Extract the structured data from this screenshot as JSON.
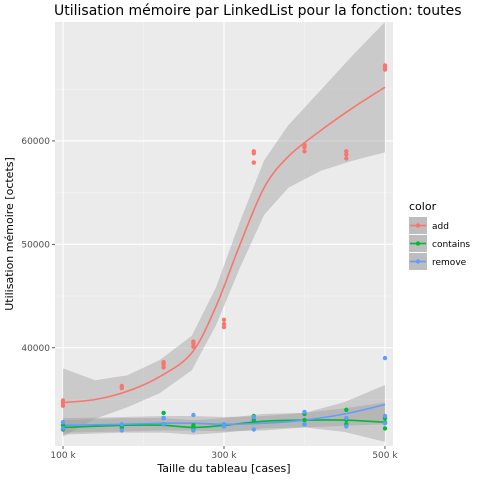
{
  "chart_data": {
    "type": "scatter",
    "title": "Utilisation mémoire par LinkedList pour la fonction: toutes",
    "xlabel": "Taille du tableau [cases]",
    "ylabel": "Utilisation mémoire [octets]",
    "xlim": [
      90000,
      510000
    ],
    "ylim": [
      30500,
      71500
    ],
    "x_ticks": [
      100000,
      300000,
      500000
    ],
    "x_tick_labels": [
      "100 k",
      "300 k",
      "500 k"
    ],
    "y_ticks": [
      40000,
      50000,
      60000
    ],
    "y_tick_labels": [
      "40000",
      "50000",
      "60000"
    ],
    "grid": true,
    "legend": {
      "title": "color",
      "position": "right"
    },
    "series": [
      {
        "name": "add",
        "color": "#F8766D",
        "points": [
          [
            100000,
            34400
          ],
          [
            100000,
            34700
          ],
          [
            100000,
            34900
          ],
          [
            173000,
            36100
          ],
          [
            173000,
            36300
          ],
          [
            225000,
            38100
          ],
          [
            225000,
            38400
          ],
          [
            225000,
            38600
          ],
          [
            262000,
            40100
          ],
          [
            262000,
            40400
          ],
          [
            262000,
            40600
          ],
          [
            300000,
            42000
          ],
          [
            300000,
            42300
          ],
          [
            300000,
            42700
          ],
          [
            337000,
            57900
          ],
          [
            337000,
            58800
          ],
          [
            337000,
            59000
          ],
          [
            400000,
            59000
          ],
          [
            400000,
            59400
          ],
          [
            400000,
            59600
          ],
          [
            452000,
            58300
          ],
          [
            452000,
            58700
          ],
          [
            452000,
            59000
          ],
          [
            500000,
            66900
          ],
          [
            500000,
            67100
          ],
          [
            500000,
            67300
          ]
        ],
        "trend": [
          [
            100000,
            34700
          ],
          [
            140000,
            35000
          ],
          [
            180000,
            35800
          ],
          [
            220000,
            37200
          ],
          [
            260000,
            39500
          ],
          [
            290000,
            44000
          ],
          [
            320000,
            50000
          ],
          [
            350000,
            55500
          ],
          [
            380000,
            58500
          ],
          [
            420000,
            61000
          ],
          [
            460000,
            63200
          ],
          [
            500000,
            65200
          ]
        ]
      },
      {
        "name": "contains",
        "color": "#00BA38",
        "points": [
          [
            100000,
            32100
          ],
          [
            100000,
            32500
          ],
          [
            173000,
            32300
          ],
          [
            173000,
            32500
          ],
          [
            225000,
            32600
          ],
          [
            225000,
            33200
          ],
          [
            225000,
            33700
          ],
          [
            262000,
            32200
          ],
          [
            262000,
            32500
          ],
          [
            300000,
            32400
          ],
          [
            300000,
            32600
          ],
          [
            337000,
            33000
          ],
          [
            337000,
            33400
          ],
          [
            400000,
            32600
          ],
          [
            400000,
            33000
          ],
          [
            400000,
            33600
          ],
          [
            452000,
            32600
          ],
          [
            452000,
            33000
          ],
          [
            452000,
            34000
          ],
          [
            500000,
            32200
          ],
          [
            500000,
            32800
          ],
          [
            500000,
            33200
          ]
        ],
        "trend": [
          [
            100000,
            32300
          ],
          [
            175000,
            32500
          ],
          [
            225000,
            32500
          ],
          [
            262000,
            32300
          ],
          [
            300000,
            32500
          ],
          [
            350000,
            32900
          ],
          [
            400000,
            33000
          ],
          [
            450000,
            33000
          ],
          [
            500000,
            32800
          ]
        ]
      },
      {
        "name": "remove",
        "color": "#619CFF",
        "points": [
          [
            100000,
            32200
          ],
          [
            100000,
            32800
          ],
          [
            173000,
            32000
          ],
          [
            173000,
            32600
          ],
          [
            225000,
            32600
          ],
          [
            225000,
            33200
          ],
          [
            262000,
            32000
          ],
          [
            262000,
            33500
          ],
          [
            300000,
            32400
          ],
          [
            300000,
            32600
          ],
          [
            337000,
            32100
          ],
          [
            337000,
            33300
          ],
          [
            400000,
            32600
          ],
          [
            400000,
            33800
          ],
          [
            452000,
            32400
          ],
          [
            452000,
            33200
          ],
          [
            500000,
            32700
          ],
          [
            500000,
            33400
          ],
          [
            500000,
            39000
          ]
        ],
        "trend": [
          [
            100000,
            32500
          ],
          [
            175000,
            32600
          ],
          [
            225000,
            32700
          ],
          [
            262000,
            32700
          ],
          [
            300000,
            32600
          ],
          [
            350000,
            32700
          ],
          [
            400000,
            33000
          ],
          [
            450000,
            33600
          ],
          [
            500000,
            34500
          ]
        ]
      }
    ]
  }
}
